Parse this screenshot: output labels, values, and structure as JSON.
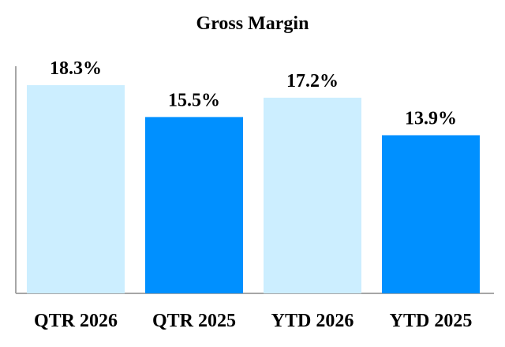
{
  "chart_data": {
    "type": "bar",
    "title": "Gross Margin",
    "categories": [
      "QTR 2026",
      "QTR 2025",
      "YTD 2026",
      "YTD 2025"
    ],
    "values": [
      18.3,
      15.5,
      17.2,
      13.9
    ],
    "value_labels": [
      "18.3%",
      "15.5%",
      "17.2%",
      "13.9%"
    ],
    "bar_colors": [
      "#cceeff",
      "#0090ff",
      "#cceeff",
      "#0090ff"
    ],
    "axis_color": "#a6a6a6",
    "xlabel": "",
    "ylabel": "",
    "ylim": [
      0,
      18.3
    ],
    "grid": false,
    "legend": "none"
  }
}
